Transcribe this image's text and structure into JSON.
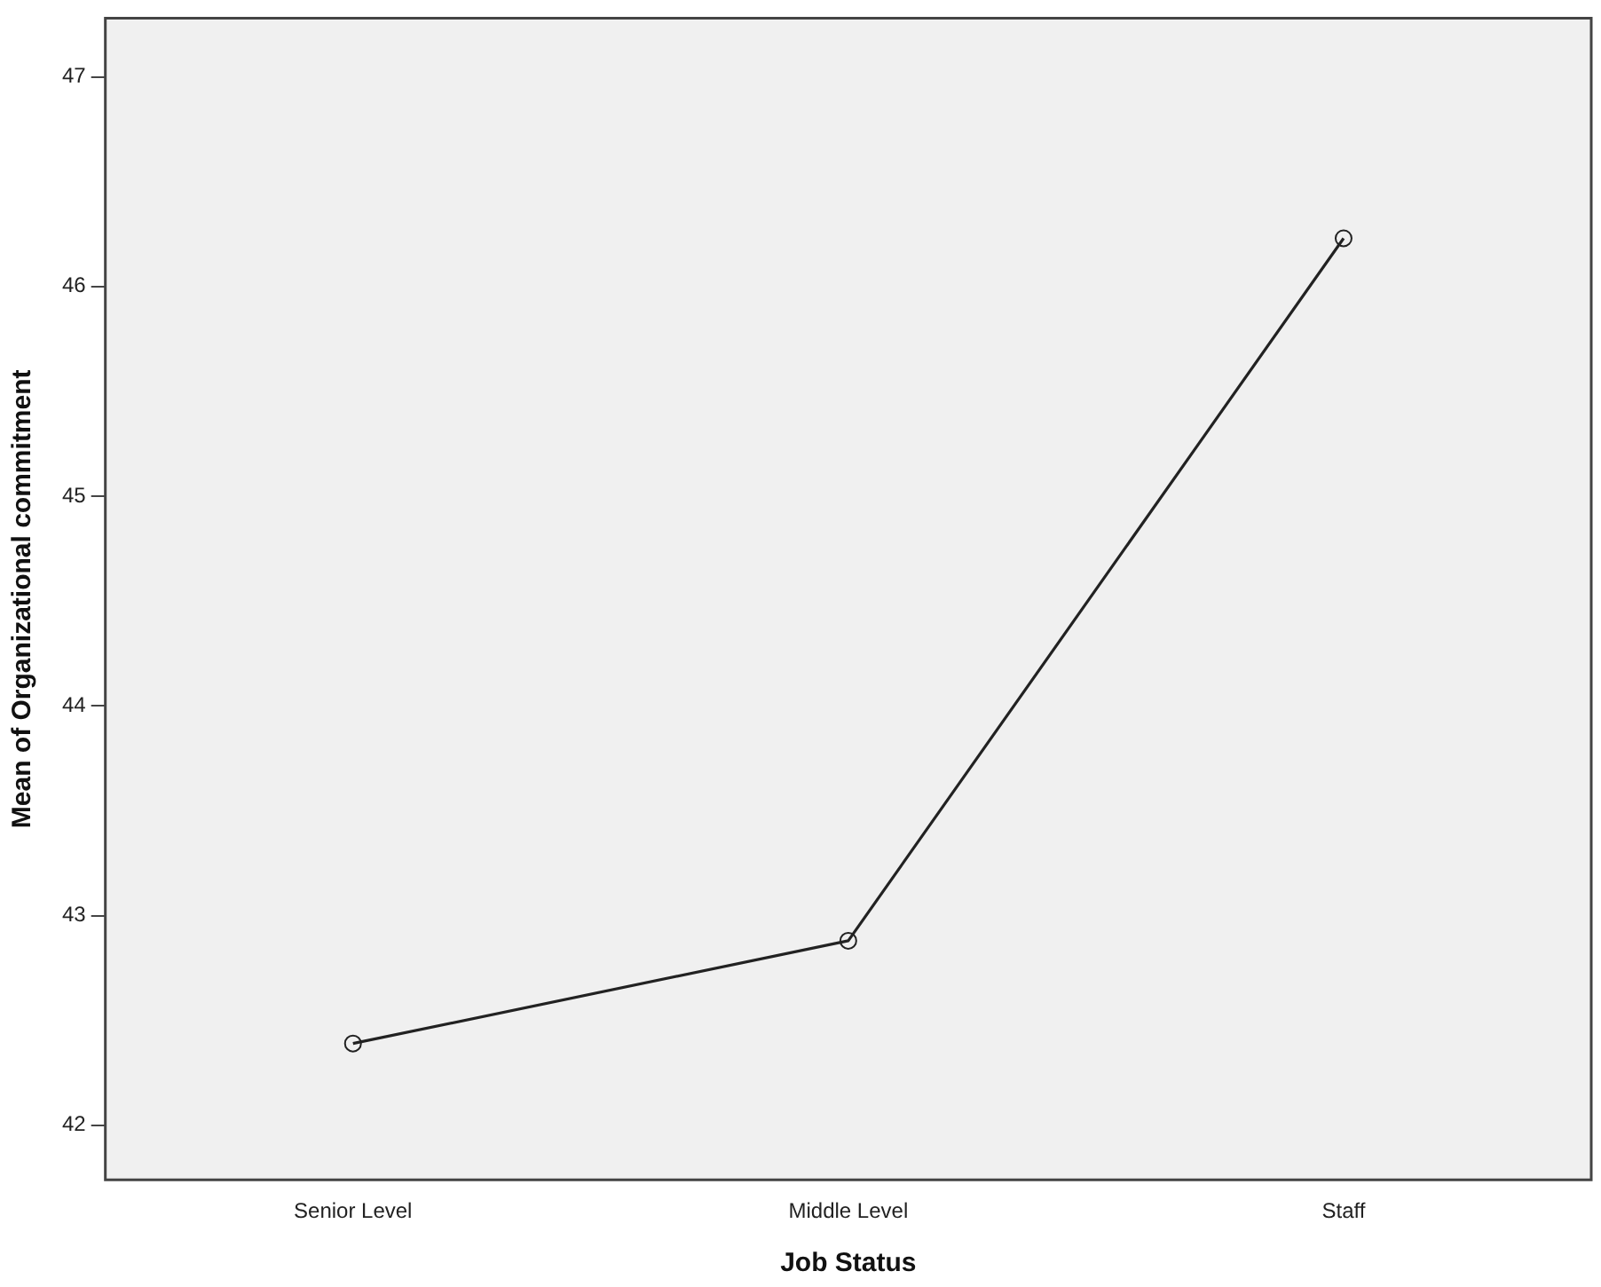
{
  "chart_data": {
    "type": "line",
    "xlabel": "Job Status",
    "ylabel": "Mean of Organizational commitment",
    "categories": [
      "Senior Level",
      "Middle Level",
      "Staff"
    ],
    "series": [
      {
        "color": "#222222",
        "values": [
          42.39,
          42.88,
          46.23
        ]
      }
    ],
    "ylim": [
      41.74,
      47.28
    ],
    "yticks": [
      42,
      43,
      44,
      45,
      46,
      47
    ],
    "grid": false,
    "legend": false,
    "marker": "circle",
    "line_style": "solid"
  }
}
